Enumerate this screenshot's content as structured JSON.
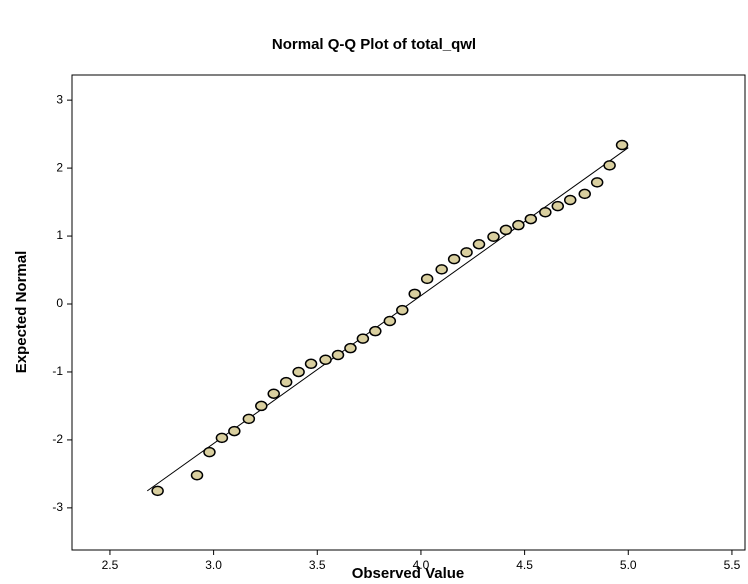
{
  "chart_data": {
    "type": "scatter",
    "title": "Normal Q-Q Plot of total_qwl",
    "x_label": "Observed Value",
    "y_label": "Expected Normal",
    "x": [
      2.73,
      2.92,
      2.98,
      3.04,
      3.1,
      3.17,
      3.23,
      3.29,
      3.35,
      3.41,
      3.47,
      3.54,
      3.6,
      3.66,
      3.72,
      3.78,
      3.85,
      3.91,
      3.97,
      4.03,
      4.1,
      4.16,
      4.22,
      4.28,
      4.35,
      4.41,
      4.47,
      4.53,
      4.6,
      4.66,
      4.72,
      4.79,
      4.85,
      4.91,
      4.97
    ],
    "values": [
      -2.75,
      -2.52,
      -2.18,
      -1.97,
      -1.87,
      -1.69,
      -1.5,
      -1.32,
      -1.15,
      -1.0,
      -0.88,
      -0.82,
      -0.75,
      -0.65,
      -0.51,
      -0.4,
      -0.25,
      -0.09,
      0.15,
      0.37,
      0.51,
      0.66,
      0.76,
      0.88,
      0.99,
      1.09,
      1.16,
      1.25,
      1.35,
      1.44,
      1.53,
      1.62,
      1.79,
      2.04,
      2.34
    ],
    "color": "#d9cf9f",
    "reference_line": {
      "x": [
        2.68,
        5.0
      ],
      "y": [
        -2.75,
        2.3
      ]
    },
    "xlim": [
      2.317,
      5.563
    ],
    "ylim": [
      -3.62,
      3.37
    ],
    "xticks": [
      2.5,
      {
        "value": 3,
        "label": "3.0"
      },
      3.5,
      {
        "value": 4,
        "label": "4.0"
      },
      4.5,
      {
        "value": 5,
        "label": "5.0"
      },
      5.5
    ],
    "yticks": [
      -3,
      -2,
      -1,
      0,
      1,
      2,
      3
    ]
  }
}
